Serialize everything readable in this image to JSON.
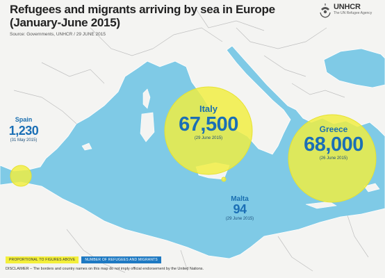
{
  "title_lines": [
    "Refugees and migrants arriving by sea in Europe",
    "(January-June 2015)"
  ],
  "source": "Source: Governments, UNHCR / 29 JUNE 2015",
  "logo": {
    "name": "UNHCR",
    "subtitle": "The UN Refugee Agency",
    "icon": "unhcr-emblem-icon"
  },
  "arrivals": [
    {
      "country": "Italy",
      "value": "67,500",
      "number": 67500,
      "date": "(29 June 2015)"
    },
    {
      "country": "Greece",
      "value": "68,000",
      "number": 68000,
      "date": "(26 June 2015)"
    },
    {
      "country": "Spain",
      "value": "1,230",
      "number": 1230,
      "date": "(31 May 2015)"
    },
    {
      "country": "Malta",
      "value": "94",
      "number": 94,
      "date": "(29 June 2015)"
    }
  ],
  "legend": {
    "proportional": "PROPORTIONAL TO FIGURES ABOVE",
    "number": "NUMBER OF REFUGEES AND MIGRANTS"
  },
  "disclaimer": "DISCLAIMER – The borders and country names on this map do not imply official endorsement by the United Nations.",
  "colors": {
    "sea": "#7fcae6",
    "land": "#f4f4f2",
    "border": "#bfbfbf",
    "circle": "#f2ee3d",
    "label": "#1b6fb5"
  }
}
